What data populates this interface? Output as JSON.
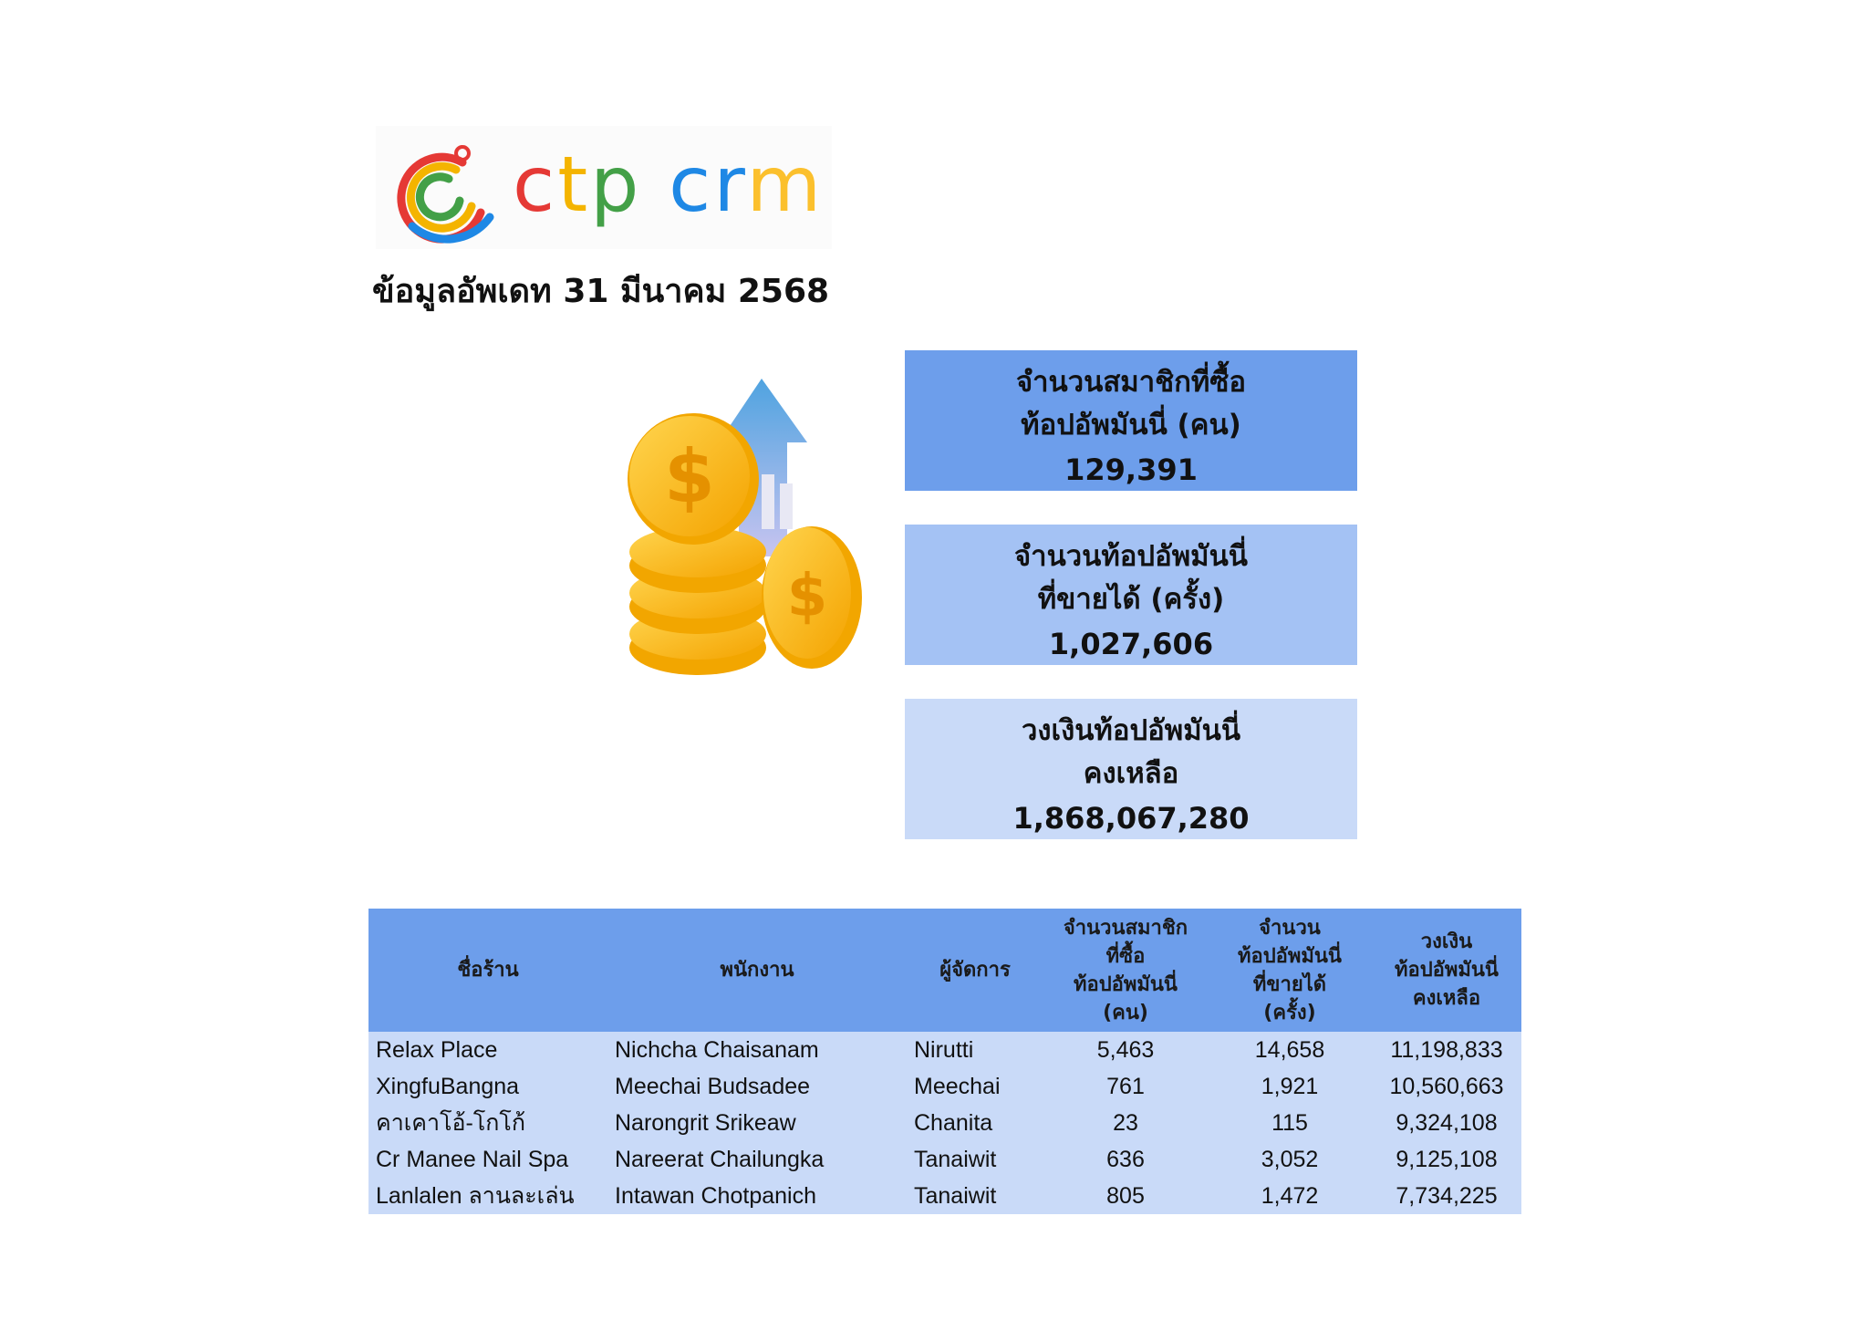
{
  "logo": {
    "text_c": "c",
    "text_t": "t",
    "text_p": "p",
    "text_cr": " cr",
    "text_m": "m"
  },
  "update_label": "ข้อมูลอัพเดท  31 มีนาคม  2568",
  "stats": [
    {
      "label": "จำนวนสมาชิกที่ซื้อ\nท้อปอัพมันนี่ (คน)",
      "value": "129,391"
    },
    {
      "label": "จำนวนท้อปอัพมันนี่\nที่ขายได้ (ครั้ง)",
      "value": "1,027,606"
    },
    {
      "label": "วงเงินท้อปอัพมันนี่\nคงเหลือ",
      "value": "1,868,067,280"
    }
  ],
  "table": {
    "headers": [
      "ชื่อร้าน",
      "พนักงาน",
      "ผู้จัดการ",
      "จำนวนสมาชิก\nที่ซื้อ\nท้อปอัพมันนี่\n(คน)",
      "จำนวน\nท้อปอัพมันนี่\nที่ขายได้\n(ครั้ง)",
      "วงเงิน\nท้อปอัพมันนี่\nคงเหลือ"
    ],
    "rows": [
      [
        "Relax Place",
        "Nichcha Chaisanam",
        "Nirutti",
        "5,463",
        "14,658",
        "11,198,833"
      ],
      [
        "XingfuBangna",
        "Meechai Budsadee",
        "Meechai",
        "761",
        "1,921",
        "10,560,663"
      ],
      [
        "คาเคาโอ้-โกโก้",
        "Narongrit Srikeaw",
        "Chanita",
        "23",
        "115",
        "9,324,108"
      ],
      [
        "Cr Manee Nail Spa",
        "Nareerat Chailungka",
        "Tanaiwit",
        "636",
        "3,052",
        "9,125,108"
      ],
      [
        "Lanlalen ลานละเล่น",
        "Intawan Chotpanich",
        "Tanaiwit",
        "805",
        "1,472",
        "7,734,225"
      ]
    ]
  }
}
